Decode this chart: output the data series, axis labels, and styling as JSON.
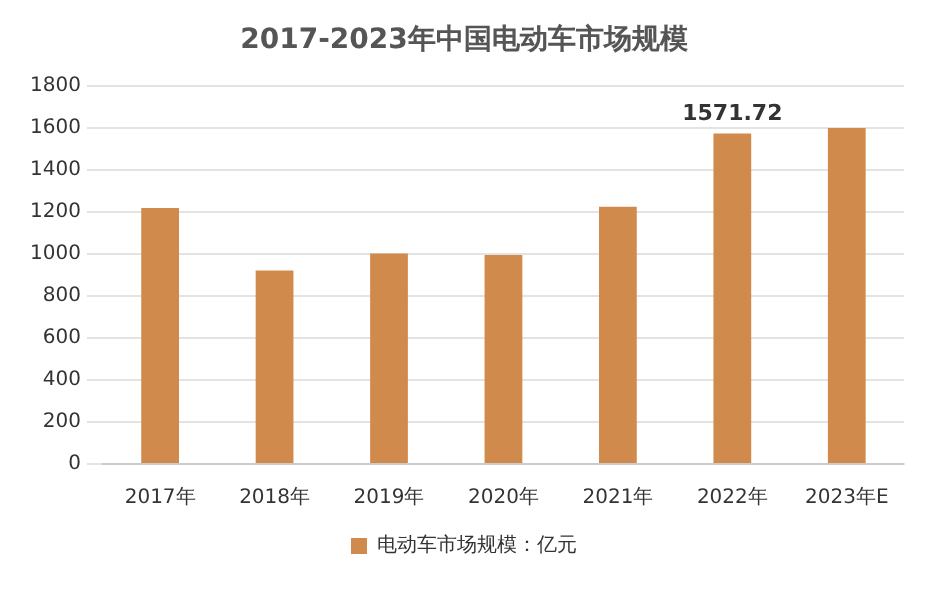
{
  "chart_data": {
    "type": "bar",
    "title": "2017-2023年中国电动车市场规模",
    "categories": [
      "2017年",
      "2018年",
      "2019年",
      "2020年",
      "2021年",
      "2022年",
      "2023年E"
    ],
    "series": [
      {
        "name": "电动车市场规模：亿元",
        "color": "#d08b4c",
        "values": [
          1218,
          921,
          1001,
          994,
          1224,
          1571.72,
          1598
        ],
        "value_labels": [
          null,
          null,
          null,
          null,
          null,
          "1571.72",
          null
        ]
      }
    ],
    "ylim": [
      0,
      1800
    ],
    "yticks": [
      0,
      200,
      400,
      600,
      800,
      1000,
      1200,
      1400,
      1600,
      1800
    ],
    "grid": "y",
    "legend": "bottom"
  }
}
